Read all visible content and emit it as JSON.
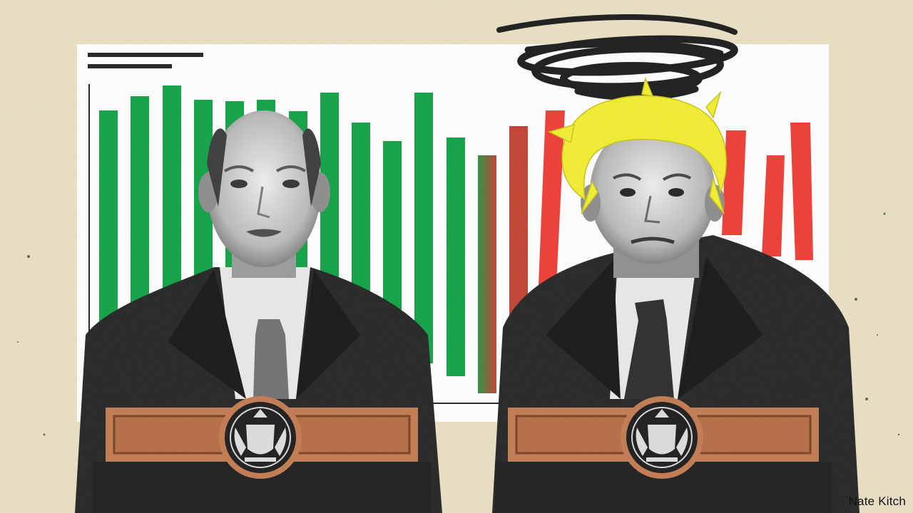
{
  "illustration": {
    "credit": "Nate Kitch",
    "colors": {
      "background": "#e9e0c3",
      "panel": "#ffffff",
      "bar_green": "#0ea244",
      "bar_red": "#ef3b33",
      "hair_yellow": "#f2ee2e",
      "podium": "#c27a4f",
      "suit": "#1f1f1f",
      "scribble": "#1a1a1a"
    },
    "icons": [
      "royal-coat-of-arms-seal",
      "scribble-halo"
    ]
  }
}
